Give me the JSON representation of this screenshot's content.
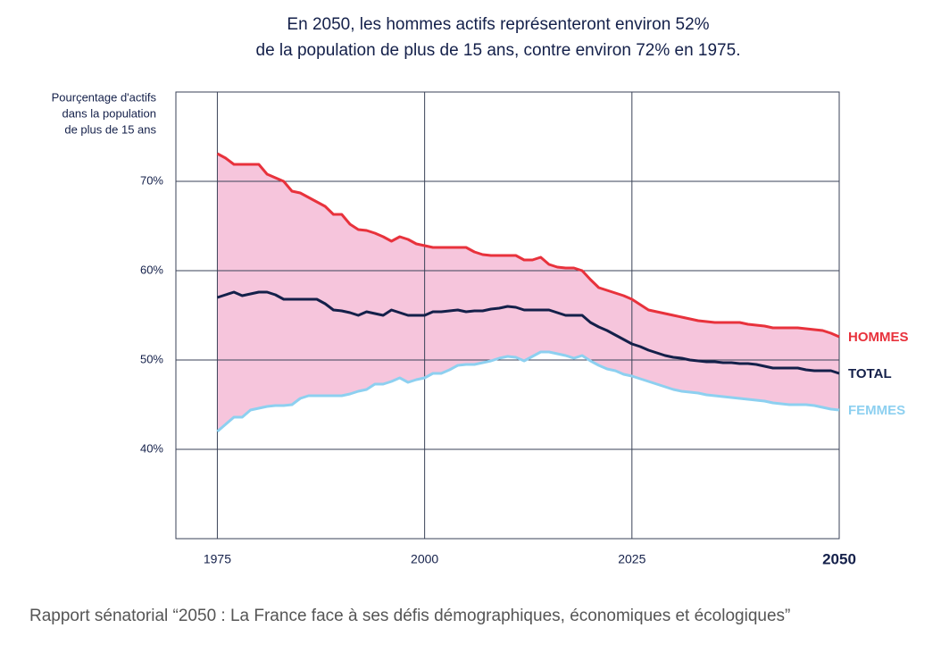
{
  "chart_data": {
    "type": "line",
    "title": [
      "En 2050, les hommes actifs représenteront environ 52%",
      "de la population de plus de 15 ans, contre environ 72% en 1975."
    ],
    "y_label": [
      "Pourçentage d'actifs",
      "dans la population",
      "de plus de 15 ans"
    ],
    "source": "Rapport sénatorial “2050 : La France face à ses défis démographiques, économiques et écologiques”",
    "x": [
      1975,
      1976,
      1977,
      1978,
      1979,
      1980,
      1981,
      1982,
      1983,
      1984,
      1985,
      1986,
      1987,
      1988,
      1989,
      1990,
      1991,
      1992,
      1993,
      1994,
      1995,
      1996,
      1997,
      1998,
      1999,
      2000,
      2001,
      2002,
      2003,
      2004,
      2005,
      2006,
      2007,
      2008,
      2009,
      2010,
      2011,
      2012,
      2013,
      2014,
      2015,
      2016,
      2017,
      2018,
      2019,
      2020,
      2021,
      2022,
      2023,
      2024,
      2025,
      2026,
      2027,
      2028,
      2029,
      2030,
      2031,
      2032,
      2033,
      2034,
      2035,
      2036,
      2037,
      2038,
      2039,
      2040,
      2041,
      2042,
      2043,
      2044,
      2045,
      2046,
      2047,
      2048,
      2049,
      2050
    ],
    "series": [
      {
        "name": "HOMMES",
        "color": "#e8323c",
        "values": [
          73.1,
          72.6,
          71.9,
          71.9,
          71.9,
          71.9,
          70.8,
          70.4,
          70,
          68.9,
          68.7,
          68.2,
          67.7,
          67.2,
          66.3,
          66.3,
          65.2,
          64.6,
          64.5,
          64.2,
          63.8,
          63.3,
          63.8,
          63.5,
          63,
          62.8,
          62.6,
          62.6,
          62.6,
          62.6,
          62.6,
          62.1,
          61.8,
          61.7,
          61.7,
          61.7,
          61.7,
          61.2,
          61.2,
          61.5,
          60.7,
          60.4,
          60.3,
          60.3,
          60,
          59,
          58.1,
          57.8,
          57.5,
          57.2,
          56.8,
          56.2,
          55.6,
          55.4,
          55.2,
          55,
          54.8,
          54.6,
          54.4,
          54.3,
          54.2,
          54.2,
          54.2,
          54.2,
          54,
          53.9,
          53.8,
          53.6,
          53.6,
          53.6,
          53.6,
          53.5,
          53.4,
          53.3,
          53,
          52.6
        ]
      },
      {
        "name": "TOTAL",
        "color": "#14204a",
        "values": [
          57,
          57.3,
          57.6,
          57.2,
          57.4,
          57.6,
          57.6,
          57.3,
          56.8,
          56.8,
          56.8,
          56.8,
          56.8,
          56.3,
          55.6,
          55.5,
          55.3,
          55,
          55.4,
          55.2,
          55,
          55.6,
          55.3,
          55,
          55,
          55,
          55.4,
          55.4,
          55.5,
          55.6,
          55.4,
          55.5,
          55.5,
          55.7,
          55.8,
          56,
          55.9,
          55.6,
          55.6,
          55.6,
          55.6,
          55.3,
          55,
          55,
          55,
          54.2,
          53.7,
          53.3,
          52.8,
          52.3,
          51.8,
          51.5,
          51.1,
          50.8,
          50.5,
          50.3,
          50.2,
          50,
          49.9,
          49.8,
          49.8,
          49.7,
          49.7,
          49.6,
          49.6,
          49.5,
          49.3,
          49.1,
          49.1,
          49.1,
          49.1,
          48.9,
          48.8,
          48.8,
          48.8,
          48.5
        ]
      },
      {
        "name": "FEMMES",
        "color": "#8dd0f0",
        "values": [
          42,
          42.8,
          43.6,
          43.6,
          44.4,
          44.6,
          44.8,
          44.9,
          44.9,
          45,
          45.7,
          46,
          46,
          46,
          46,
          46,
          46.2,
          46.5,
          46.7,
          47.3,
          47.3,
          47.6,
          48,
          47.5,
          47.8,
          48,
          48.5,
          48.5,
          48.9,
          49.4,
          49.5,
          49.5,
          49.7,
          49.9,
          50.2,
          50.4,
          50.3,
          49.9,
          50.4,
          50.9,
          50.9,
          50.7,
          50.5,
          50.2,
          50.5,
          49.9,
          49.4,
          49,
          48.8,
          48.4,
          48.2,
          47.9,
          47.6,
          47.3,
          47,
          46.7,
          46.5,
          46.4,
          46.3,
          46.1,
          46,
          45.9,
          45.8,
          45.7,
          45.6,
          45.5,
          45.4,
          45.2,
          45.1,
          45,
          45,
          45,
          44.9,
          44.7,
          44.5,
          44.4
        ]
      }
    ],
    "fill_between": [
      "HOMMES",
      "FEMMES"
    ],
    "fill_color": "#f6c5dc",
    "xlim": [
      1970,
      2050
    ],
    "ylim": [
      30,
      80
    ],
    "xticks": [
      1975,
      2000,
      2025,
      2050
    ],
    "yticks": [
      {
        "value": 40,
        "label": "40%"
      },
      {
        "value": 50,
        "label": "50%"
      },
      {
        "value": 60,
        "label": "60%"
      },
      {
        "value": 70,
        "label": "70%"
      }
    ],
    "grid": true
  }
}
